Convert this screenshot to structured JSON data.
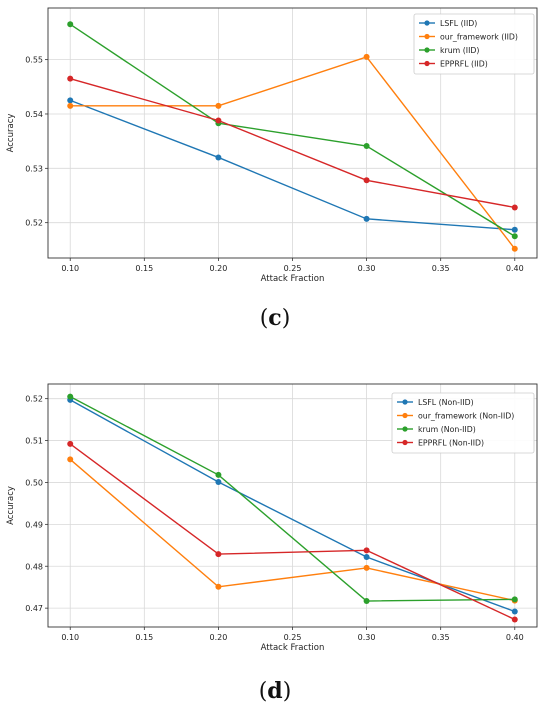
{
  "panels": [
    {
      "letter": "c",
      "open": "(",
      "close": ")"
    },
    {
      "letter": "d",
      "open": "(",
      "close": ")"
    }
  ],
  "chart_data": [
    {
      "type": "line",
      "xlabel": "Attack Fraction",
      "ylabel": "Accuracy",
      "x": [
        0.1,
        0.2,
        0.3,
        0.4
      ],
      "xticks": [
        "0.10",
        "0.15",
        "0.20",
        "0.25",
        "0.30",
        "0.35",
        "0.40"
      ],
      "xtick_values": [
        0.1,
        0.15,
        0.2,
        0.25,
        0.3,
        0.35,
        0.4
      ],
      "yticks": [
        "0.52",
        "0.53",
        "0.54",
        "0.55"
      ],
      "ytick_values": [
        0.52,
        0.53,
        0.54,
        0.55
      ],
      "xlim": [
        0.085,
        0.415
      ],
      "ylim": [
        0.5135,
        0.5595
      ],
      "grid": true,
      "legend_position": "top-right",
      "series": [
        {
          "name": "LSFL (IID)",
          "color": "#1f77b4",
          "values": [
            0.5425,
            0.532,
            0.5207,
            0.5187
          ]
        },
        {
          "name": "our_framework (IID)",
          "color": "#ff7f0e",
          "values": [
            0.5415,
            0.5415,
            0.5505,
            0.5152
          ]
        },
        {
          "name": "krum (IID)",
          "color": "#2ca02c",
          "values": [
            0.5565,
            0.5383,
            0.5341,
            0.5175
          ]
        },
        {
          "name": "EPPRFL (IID)",
          "color": "#d62728",
          "values": [
            0.5465,
            0.5388,
            0.5278,
            0.5228
          ]
        }
      ]
    },
    {
      "type": "line",
      "xlabel": "Attack Fraction",
      "ylabel": "Accuracy",
      "x": [
        0.1,
        0.2,
        0.3,
        0.4
      ],
      "xticks": [
        "0.10",
        "0.15",
        "0.20",
        "0.25",
        "0.30",
        "0.35",
        "0.40"
      ],
      "xtick_values": [
        0.1,
        0.15,
        0.2,
        0.25,
        0.3,
        0.35,
        0.4
      ],
      "yticks": [
        "0.47",
        "0.48",
        "0.49",
        "0.50",
        "0.51",
        "0.52"
      ],
      "ytick_values": [
        0.47,
        0.48,
        0.49,
        0.5,
        0.51,
        0.52
      ],
      "xlim": [
        0.085,
        0.415
      ],
      "ylim": [
        0.4655,
        0.5235
      ],
      "grid": true,
      "legend_position": "top-right",
      "series": [
        {
          "name": "LSFL (Non-IID)",
          "color": "#1f77b4",
          "values": [
            0.5197,
            0.5001,
            0.4822,
            0.4692
          ]
        },
        {
          "name": "our_framework (Non-IID)",
          "color": "#ff7f0e",
          "values": [
            0.5055,
            0.4751,
            0.4796,
            0.4718
          ]
        },
        {
          "name": "krum (Non-IID)",
          "color": "#2ca02c",
          "values": [
            0.5205,
            0.5018,
            0.4717,
            0.4721
          ]
        },
        {
          "name": "EPPRFL (Non-IID)",
          "color": "#d62728",
          "values": [
            0.5092,
            0.4829,
            0.4838,
            0.4673
          ]
        }
      ]
    }
  ]
}
